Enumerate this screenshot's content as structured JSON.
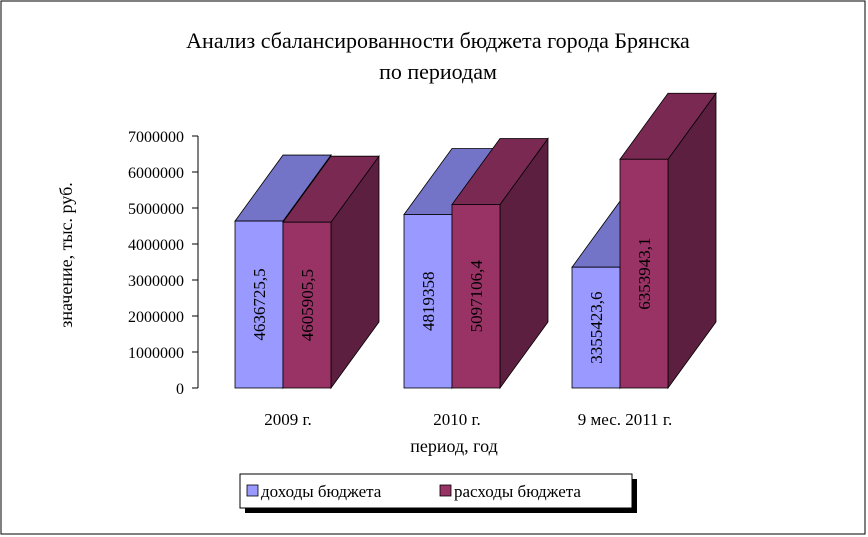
{
  "chart_data": {
    "type": "bar",
    "title_line1": "Анализ сбалансированности  бюджета города Брянска",
    "title_line2": "по периодам",
    "xlabel": "период, год",
    "ylabel": "значение, тыс. руб.",
    "ylim": [
      0,
      7000000
    ],
    "yticks": [
      "0",
      "1000000",
      "2000000",
      "3000000",
      "4000000",
      "5000000",
      "6000000",
      "7000000"
    ],
    "categories": [
      "2009 г.",
      "2010 г.",
      "9 мес. 2011 г."
    ],
    "series": [
      {
        "name": "доходы бюджета",
        "color": "#9999ff",
        "values": [
          4636725.5,
          4819358,
          3355423.6
        ],
        "labels": [
          "4636725,5",
          "4819358",
          "3355423,6"
        ]
      },
      {
        "name": "расходы бюджета",
        "color": "#993366",
        "values": [
          4605905.5,
          5097106.4,
          6353943.1
        ],
        "labels": [
          "4605905,5",
          "5097106,4",
          "6353943,1"
        ]
      }
    ],
    "grid": false,
    "legend_position": "bottom"
  }
}
